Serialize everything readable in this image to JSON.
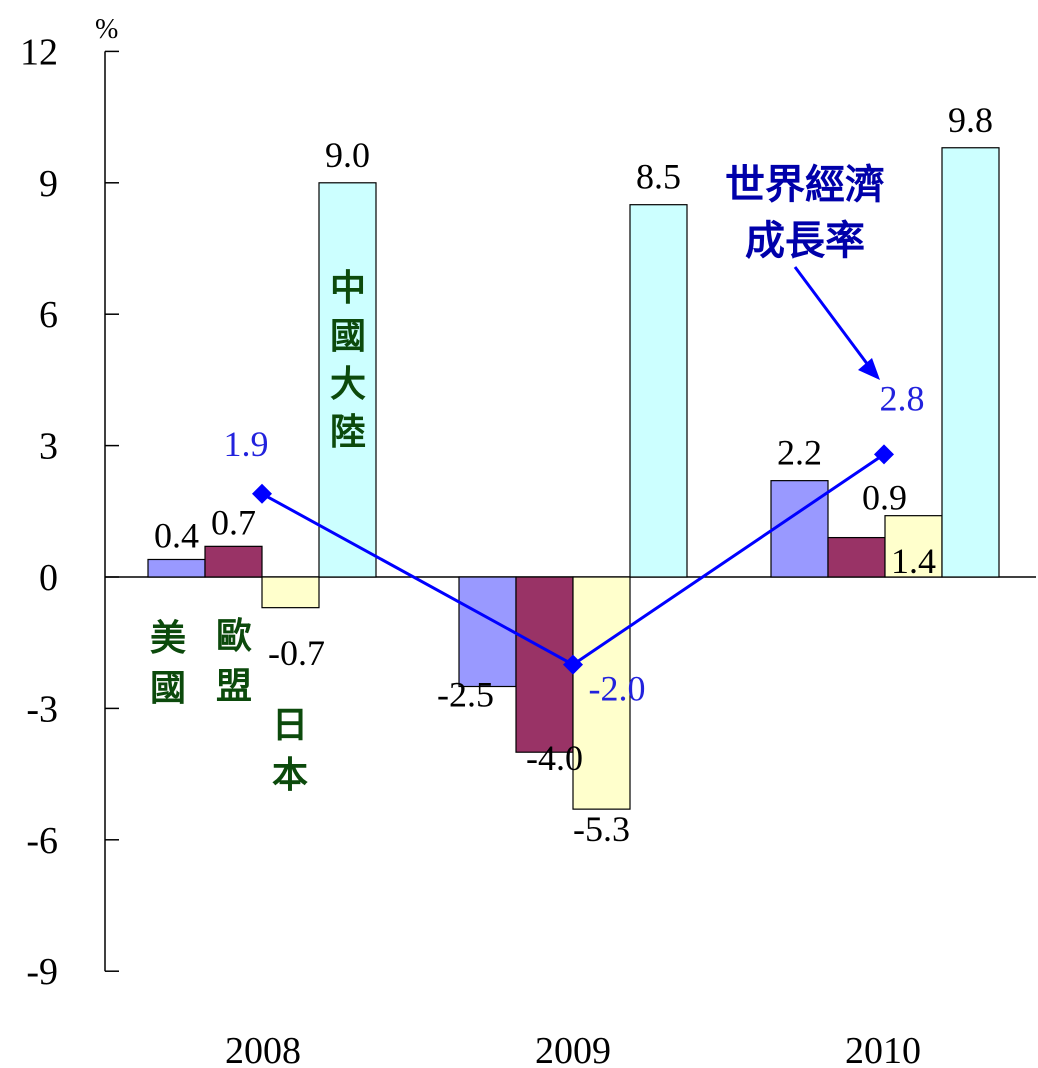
{
  "chart_data": {
    "type": "bar",
    "unit": "%",
    "categories": [
      "2008",
      "2009",
      "2010"
    ],
    "ylim": [
      -9,
      12
    ],
    "yticks": [
      12,
      9,
      6,
      3,
      0,
      -3,
      -6,
      -9
    ],
    "grid": false,
    "series": [
      {
        "name": "美國",
        "values": [
          0.4,
          -2.5,
          2.2
        ],
        "labels": [
          "0.4",
          "-2.5",
          "2.2"
        ],
        "color": "#9999ff"
      },
      {
        "name": "歐盟",
        "values": [
          0.7,
          -4.0,
          0.9
        ],
        "labels": [
          "0.7",
          "-4.0",
          "0.9"
        ],
        "color": "#993366"
      },
      {
        "name": "日本",
        "values": [
          -0.7,
          -5.3,
          1.4
        ],
        "labels": [
          "-0.7",
          "-5.3",
          "1.4"
        ],
        "color": "#ffffcc"
      },
      {
        "name": "中國大陸",
        "values": [
          9.0,
          8.5,
          9.8
        ],
        "labels": [
          "9.0",
          "8.5",
          "9.8"
        ],
        "color": "#ccffff"
      }
    ],
    "line": {
      "name": "世界經濟成長率",
      "values": [
        1.9,
        -2.0,
        2.8
      ],
      "labels": [
        "1.9",
        "-2.0",
        "2.8"
      ],
      "color": "#0000ff"
    },
    "world_label_lines": [
      "世界經濟",
      "成長率"
    ]
  }
}
